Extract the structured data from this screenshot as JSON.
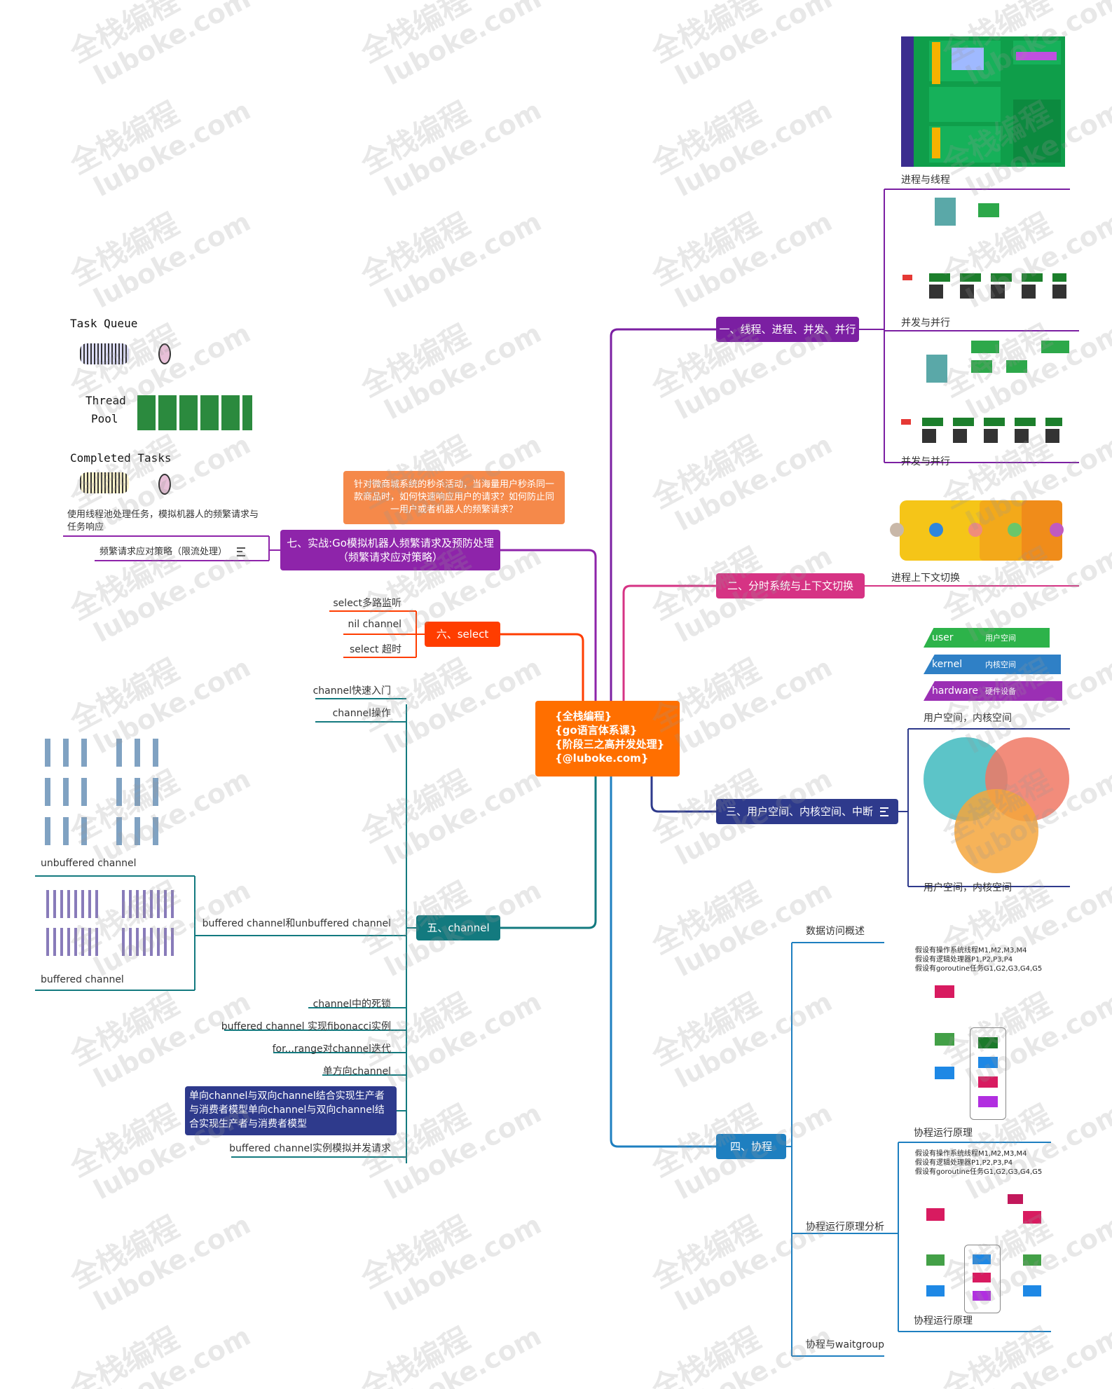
{
  "root": {
    "lines": [
      "{全栈编程}",
      "{go语言体系课}",
      "{阶段三之高并发处理}",
      "{@luboke.com}"
    ]
  },
  "colors": {
    "root": "#ff6f00",
    "b1": "#7b1fa2",
    "b2": "#d63384",
    "b3": "#2e3a8c",
    "b4": "#1e7fc0",
    "b5": "#137a7f",
    "b6": "#ff3d00",
    "b7": "#8e24aa",
    "b7note": "#f5894a"
  },
  "branches": {
    "b1": {
      "label": "一、线程、进程、并发、并行",
      "images": [
        "进程与线程",
        "并发与并行",
        "并发与并行"
      ]
    },
    "b2": {
      "label": "二、分时系统与上下文切换",
      "images": [
        "进程上下文切换"
      ]
    },
    "b3": {
      "label": "三、用户空间、内核空间、中断",
      "images": [
        "用户空间，内核空间",
        "用户空间，内核空间"
      ],
      "layers": [
        {
          "left": "user",
          "right": "用户空间"
        },
        {
          "left": "kernel",
          "right": "内核空间"
        },
        {
          "left": "hardware",
          "right": "硬件设备"
        }
      ]
    },
    "b4": {
      "label": "四、协程",
      "children": [
        "数据访问概述",
        "协程运行原理分析",
        "协程与waitgroup"
      ],
      "images": [
        "协程运行原理",
        "协程运行原理"
      ],
      "note_lines": [
        "假设有操作系统线程M1,M2,M3,M4",
        "假设有逻辑处理器P1,P2,P3,P4",
        "假设有goroutine任务G1,G2,G3,G4,G5"
      ],
      "note_lines2": [
        "假设有操作系统线程M1,M2,M3,M4",
        "假设有逻辑处理器P1,P2,P3,P4",
        "假设有goroutine任务G1,G2,G3,G4,G5"
      ]
    },
    "b5": {
      "label": "五、channel",
      "children": [
        "channel快速入门",
        "channel操作",
        "buffered channel和unbuffered channel",
        "channel中的死锁",
        "buffered channel 实现fibonacci实例",
        "for...range对channel迭代",
        "单方向channel",
        "单向channel与双向channel结合实现生产者与消费者模型单向channel与双向channel结合实现生产者与消费者模型",
        "buffered channel实例模拟并发请求"
      ],
      "images": [
        "unbuffered channel",
        "buffered channel"
      ]
    },
    "b6": {
      "label": "六、select",
      "children": [
        "select多路监听",
        "nil channel",
        "select 超时"
      ]
    },
    "b7": {
      "label": "七、实战:Go模拟机器人频繁请求及预防处理（频繁请求应对策略）",
      "note": "针对微商城系统的秒杀活动，当海量用户秒杀同一款商品时，如何快速响应用户的请求？如何防止同一用户或者机器人的频繁请求？",
      "children": [
        "使用线程池处理任务，模拟机器人的频繁请求与任务响应",
        "频繁请求应对策略（限流处理）"
      ],
      "pool": {
        "task_queue": "Task Queue",
        "thread": "Thread",
        "pool": "Pool",
        "completed": "Completed Tasks"
      }
    }
  },
  "watermark": {
    "line1": "全栈编程",
    "line2": "luboke.com"
  }
}
